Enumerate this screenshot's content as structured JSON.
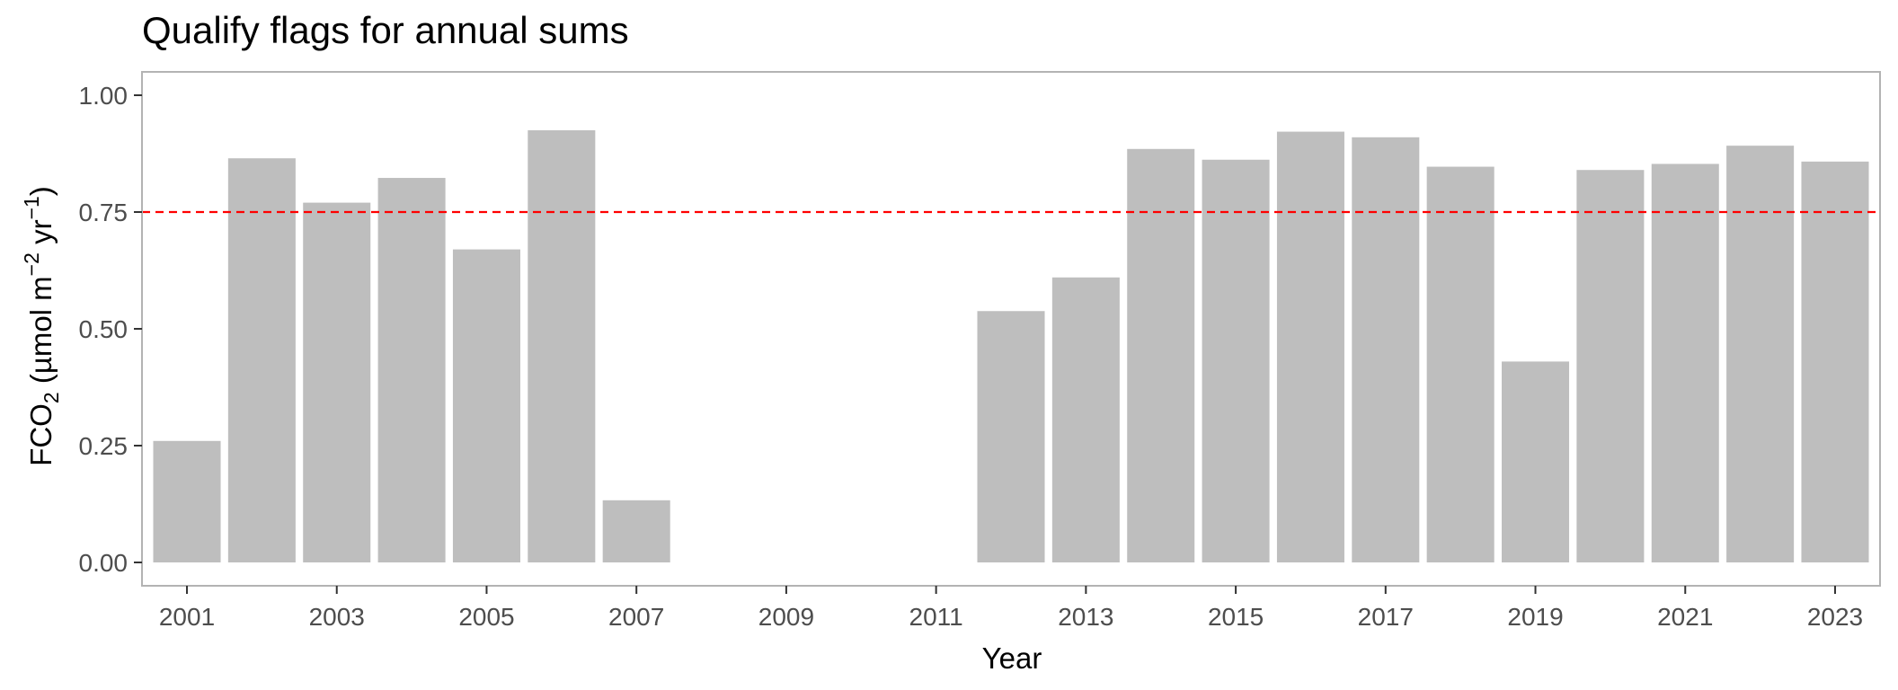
{
  "chart_data": {
    "type": "bar",
    "title": "Qualify flags for annual sums",
    "xlabel": "Year",
    "ylabel_main": "FCO",
    "ylabel_sub": "2",
    "ylabel_units_open": " (µmol m",
    "ylabel_sup1": "−2",
    "ylabel_mid": " yr",
    "ylabel_sup2": "−1",
    "ylabel_close": ")",
    "categories": [
      2001,
      2002,
      2003,
      2004,
      2005,
      2006,
      2007,
      2008,
      2009,
      2010,
      2011,
      2012,
      2013,
      2014,
      2015,
      2016,
      2017,
      2018,
      2019,
      2020,
      2021,
      2022,
      2023
    ],
    "values": [
      0.26,
      0.865,
      0.77,
      0.823,
      0.67,
      0.925,
      0.133,
      null,
      null,
      null,
      null,
      0.538,
      0.61,
      0.885,
      0.862,
      0.922,
      0.91,
      0.847,
      0.43,
      0.84,
      0.853,
      0.892,
      0.858
    ],
    "xticks": [
      "2001",
      "2003",
      "2005",
      "2007",
      "2009",
      "2011",
      "2013",
      "2015",
      "2017",
      "2019",
      "2021",
      "2023"
    ],
    "yticks": [
      "0.00",
      "0.25",
      "0.50",
      "0.75",
      "1.00"
    ],
    "ylim": [
      -0.05,
      1.05
    ],
    "xlim": [
      2000.4,
      2023.6
    ],
    "threshold": 0.75,
    "colors": {
      "bar": "#bebebe",
      "threshold": "#ff0000",
      "panel_border": "#b3b3b3",
      "tick_text": "#4d4d4d"
    },
    "grid": false
  }
}
